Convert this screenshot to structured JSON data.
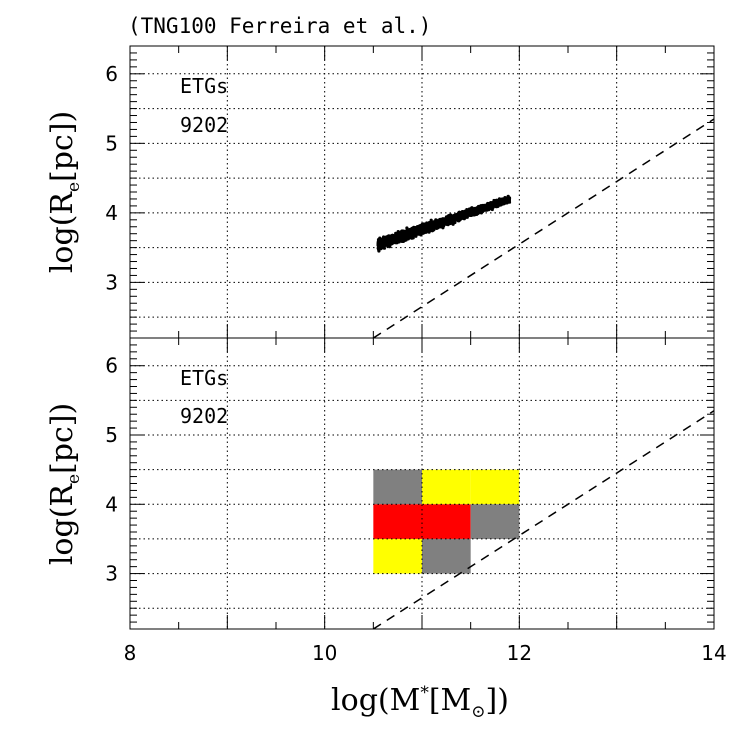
{
  "figure_title": "(TNG100 Ferreira et al.)",
  "xlabel": {
    "pre": "log(M",
    "sup": "*",
    "mid": "[M",
    "sub": "⊙",
    "post": "])"
  },
  "ylabel": {
    "pre": "log(R",
    "sub": "e",
    "post": "[pc])"
  },
  "colors": {
    "gray": "#808080",
    "yellow": "#ffff00",
    "red": "#ff0000",
    "points": "#000000"
  },
  "chart_data": [
    {
      "type": "scatter",
      "panel": "top",
      "legend_lines": [
        "ETGs",
        "9202"
      ],
      "x_range": [
        8,
        14
      ],
      "y_range": [
        2.2,
        6.4
      ],
      "x_ticks": [
        8,
        10,
        12,
        14
      ],
      "y_ticks": [
        3,
        4,
        5,
        6
      ],
      "grid": true,
      "reference_line": {
        "style": "dashed",
        "points": [
          [
            10.5,
            2.2
          ],
          [
            14,
            5.35
          ]
        ]
      },
      "point_cloud": {
        "count": 9202,
        "x_extent": [
          10.5,
          11.95
        ],
        "y_extent": [
          3.35,
          4.4
        ],
        "trend": "radius increases with stellar mass"
      }
    },
    {
      "type": "heatmap",
      "panel": "bottom",
      "legend_lines": [
        "ETGs",
        "9202"
      ],
      "x_range": [
        8,
        14
      ],
      "y_range": [
        2.2,
        6.4
      ],
      "x_ticks": [
        8,
        10,
        12,
        14
      ],
      "y_ticks": [
        3,
        4,
        5,
        6
      ],
      "grid": true,
      "reference_line": {
        "style": "dashed",
        "points": [
          [
            10.5,
            2.2
          ],
          [
            14,
            5.35
          ]
        ]
      },
      "cells": [
        {
          "x": [
            10.5,
            11.0
          ],
          "y": [
            4.0,
            4.5
          ],
          "color": "gray"
        },
        {
          "x": [
            11.0,
            11.5
          ],
          "y": [
            4.0,
            4.5
          ],
          "color": "yellow"
        },
        {
          "x": [
            11.5,
            12.0
          ],
          "y": [
            4.0,
            4.5
          ],
          "color": "yellow"
        },
        {
          "x": [
            10.5,
            11.0
          ],
          "y": [
            3.5,
            4.0
          ],
          "color": "red"
        },
        {
          "x": [
            11.0,
            11.5
          ],
          "y": [
            3.5,
            4.0
          ],
          "color": "red"
        },
        {
          "x": [
            11.5,
            12.0
          ],
          "y": [
            3.5,
            4.0
          ],
          "color": "gray"
        },
        {
          "x": [
            10.5,
            11.0
          ],
          "y": [
            3.0,
            3.5
          ],
          "color": "yellow"
        },
        {
          "x": [
            11.0,
            11.5
          ],
          "y": [
            3.0,
            3.5
          ],
          "color": "gray"
        }
      ]
    }
  ]
}
